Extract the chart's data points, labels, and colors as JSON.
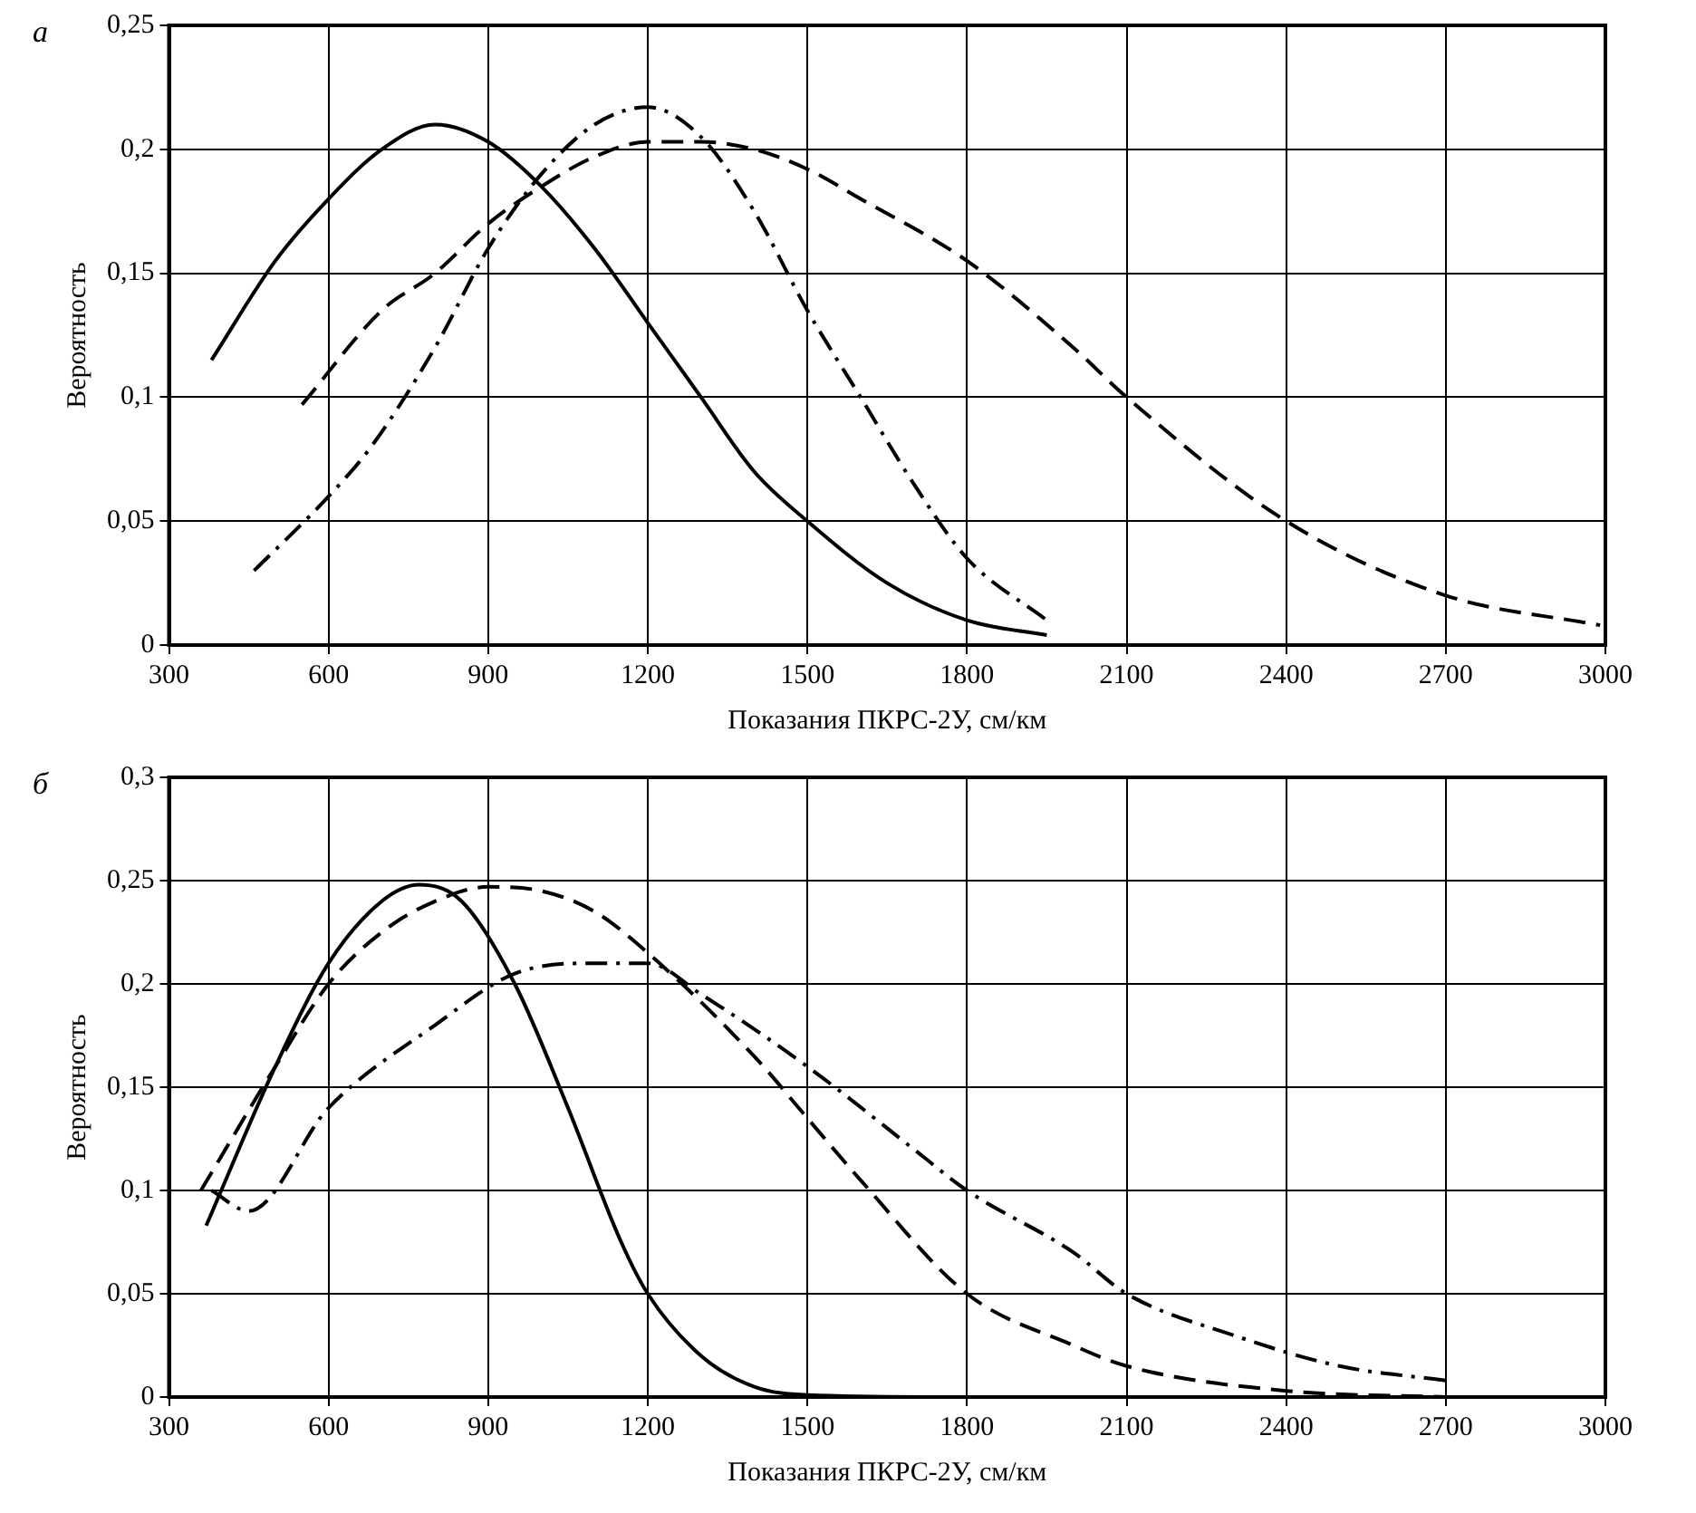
{
  "chart_data": [
    {
      "type": "line",
      "annotations": [
        "а"
      ],
      "xlabel": "Показания ПКРС-2У, см/км",
      "ylabel": "Вероятность",
      "xlim": [
        300,
        3000
      ],
      "xticks": [
        300,
        600,
        900,
        1200,
        1500,
        1800,
        2100,
        2400,
        2700,
        3000
      ],
      "ylim": [
        0,
        0.25
      ],
      "yticks": [
        0,
        {
          "value": 0.05,
          "label": "0,05"
        },
        {
          "value": 0.1,
          "label": "0,1"
        },
        {
          "value": 0.15,
          "label": "0,15"
        },
        {
          "value": 0.2,
          "label": "0,2"
        },
        {
          "value": 0.25,
          "label": "0,25"
        }
      ],
      "grid": true,
      "legend": false,
      "marker": "none",
      "series": [
        {
          "color": "#000000",
          "line_style": "solid",
          "x": [
            380,
            500,
            600,
            700,
            800,
            900,
            1000,
            1100,
            1200,
            1300,
            1400,
            1500,
            1650,
            1800,
            1950
          ],
          "values": [
            0.115,
            0.155,
            0.18,
            0.2,
            0.21,
            0.203,
            0.185,
            0.16,
            0.13,
            0.1,
            0.07,
            0.05,
            0.025,
            0.01,
            0.004
          ]
        },
        {
          "color": "#000000",
          "line_style": "dashed",
          "x": [
            550,
            700,
            800,
            900,
            1000,
            1100,
            1200,
            1300,
            1400,
            1500,
            1600,
            1800,
            2000,
            2100,
            2400,
            2700,
            2990
          ],
          "values": [
            0.097,
            0.135,
            0.15,
            0.17,
            0.185,
            0.197,
            0.203,
            0.203,
            0.2,
            0.192,
            0.18,
            0.155,
            0.12,
            0.1,
            0.05,
            0.02,
            0.008
          ]
        },
        {
          "color": "#000000",
          "line_style": "dashdot",
          "x": [
            460,
            600,
            680,
            800,
            900,
            1000,
            1100,
            1200,
            1300,
            1400,
            1500,
            1600,
            1700,
            1800,
            1950
          ],
          "values": [
            0.03,
            0.06,
            0.08,
            0.12,
            0.16,
            0.19,
            0.21,
            0.217,
            0.205,
            0.175,
            0.135,
            0.1,
            0.065,
            0.035,
            0.01
          ]
        }
      ]
    },
    {
      "type": "line",
      "annotations": [
        "б"
      ],
      "xlabel": "Показания ПКРС-2У, см/км",
      "ylabel": "Вероятность",
      "xlim": [
        300,
        3000
      ],
      "xticks": [
        300,
        600,
        900,
        1200,
        1500,
        1800,
        2100,
        2400,
        2700,
        3000
      ],
      "ylim": [
        0,
        0.3
      ],
      "yticks": [
        0,
        {
          "value": 0.05,
          "label": "0,05"
        },
        {
          "value": 0.1,
          "label": "0,1"
        },
        {
          "value": 0.15,
          "label": "0,15"
        },
        {
          "value": 0.2,
          "label": "0,2"
        },
        {
          "value": 0.25,
          "label": "0,25"
        },
        {
          "value": 0.3,
          "label": "0,3"
        }
      ],
      "grid": true,
      "legend": false,
      "marker": "none",
      "series": [
        {
          "color": "#000000",
          "line_style": "solid",
          "x": [
            370,
            500,
            600,
            700,
            770,
            850,
            950,
            1050,
            1150,
            1200,
            1300,
            1400,
            1500,
            1800,
            2400,
            3000
          ],
          "values": [
            0.083,
            0.16,
            0.21,
            0.24,
            0.248,
            0.24,
            0.2,
            0.14,
            0.075,
            0.05,
            0.02,
            0.005,
            0.001,
            0,
            0,
            0
          ]
        },
        {
          "color": "#000000",
          "line_style": "dashed",
          "x": [
            360,
            500,
            600,
            700,
            800,
            900,
            1000,
            1100,
            1200,
            1400,
            1500,
            1600,
            1800,
            2000,
            2100,
            2400,
            2700
          ],
          "values": [
            0.1,
            0.16,
            0.2,
            0.225,
            0.24,
            0.247,
            0.245,
            0.235,
            0.215,
            0.165,
            0.135,
            0.105,
            0.05,
            0.025,
            0.015,
            0.003,
            0
          ]
        },
        {
          "color": "#000000",
          "line_style": "dashdot",
          "x": [
            380,
            450,
            600,
            800,
            950,
            1100,
            1200,
            1300,
            1500,
            1700,
            1800,
            2000,
            2100,
            2300,
            2500,
            2700
          ],
          "values": [
            0.1,
            0.09,
            0.14,
            0.18,
            0.205,
            0.21,
            0.21,
            0.195,
            0.16,
            0.12,
            0.1,
            0.07,
            0.05,
            0.03,
            0.015,
            0.008
          ]
        }
      ]
    }
  ]
}
